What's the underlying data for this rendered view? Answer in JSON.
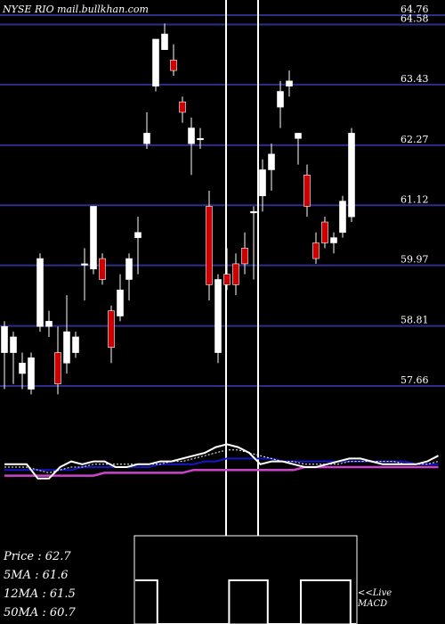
{
  "header": {
    "ticker_line": "NYSE RIO mail.bullkhan.com"
  },
  "chart_data": {
    "type": "candlestick",
    "ylim": [
      57.2,
      65.05
    ],
    "price_levels": [
      {
        "value": 64.76,
        "label": "64.76"
      },
      {
        "value": 64.58,
        "label": "64.58"
      },
      {
        "value": 63.43,
        "label": "63.43"
      },
      {
        "value": 62.27,
        "label": "62.27"
      },
      {
        "value": 61.12,
        "label": "61.12"
      },
      {
        "value": 59.97,
        "label": "59.97"
      },
      {
        "value": 58.81,
        "label": "58.81"
      },
      {
        "value": 57.66,
        "label": "57.66"
      }
    ],
    "candles": [
      {
        "o": 58.3,
        "h": 58.9,
        "l": 57.6,
        "c": 58.8,
        "color": "white"
      },
      {
        "o": 58.3,
        "h": 58.7,
        "l": 57.7,
        "c": 58.6,
        "color": "white"
      },
      {
        "o": 58.1,
        "h": 58.3,
        "l": 57.6,
        "c": 57.9,
        "color": "white"
      },
      {
        "o": 58.2,
        "h": 58.3,
        "l": 57.5,
        "c": 57.6,
        "color": "white"
      },
      {
        "o": 58.8,
        "h": 60.2,
        "l": 58.7,
        "c": 60.1,
        "color": "white"
      },
      {
        "o": 58.8,
        "h": 59.1,
        "l": 58.6,
        "c": 58.9,
        "color": "white"
      },
      {
        "o": 58.3,
        "h": 58.8,
        "l": 57.5,
        "c": 57.7,
        "color": "red"
      },
      {
        "o": 58.1,
        "h": 59.4,
        "l": 57.9,
        "c": 58.7,
        "color": "white"
      },
      {
        "o": 58.3,
        "h": 58.7,
        "l": 58.2,
        "c": 58.6,
        "color": "white"
      },
      {
        "o": 60.0,
        "h": 60.3,
        "l": 59.3,
        "c": 60.0,
        "color": "white"
      },
      {
        "o": 59.9,
        "h": 61.1,
        "l": 59.8,
        "c": 61.1,
        "color": "white"
      },
      {
        "o": 60.1,
        "h": 60.2,
        "l": 59.6,
        "c": 59.7,
        "color": "red"
      },
      {
        "o": 59.1,
        "h": 59.2,
        "l": 58.1,
        "c": 58.4,
        "color": "red"
      },
      {
        "o": 59.0,
        "h": 59.8,
        "l": 58.9,
        "c": 59.5,
        "color": "white"
      },
      {
        "o": 59.7,
        "h": 60.2,
        "l": 59.3,
        "c": 60.1,
        "color": "white"
      },
      {
        "o": 60.6,
        "h": 60.9,
        "l": 59.8,
        "c": 60.5,
        "color": "white"
      },
      {
        "o": 62.5,
        "h": 62.9,
        "l": 62.2,
        "c": 62.3,
        "color": "white"
      },
      {
        "o": 63.4,
        "h": 64.3,
        "l": 63.3,
        "c": 64.3,
        "color": "white"
      },
      {
        "o": 64.4,
        "h": 64.6,
        "l": 64.1,
        "c": 64.1,
        "color": "white"
      },
      {
        "o": 63.9,
        "h": 64.2,
        "l": 63.6,
        "c": 63.7,
        "color": "red"
      },
      {
        "o": 63.1,
        "h": 63.2,
        "l": 62.7,
        "c": 62.9,
        "color": "red"
      },
      {
        "o": 62.6,
        "h": 62.8,
        "l": 61.7,
        "c": 62.3,
        "color": "white"
      },
      {
        "o": 62.4,
        "h": 62.6,
        "l": 62.2,
        "c": 62.4,
        "color": "white"
      },
      {
        "o": 61.1,
        "h": 61.4,
        "l": 59.3,
        "c": 59.6,
        "color": "red"
      },
      {
        "o": 58.3,
        "h": 59.8,
        "l": 58.1,
        "c": 59.7,
        "color": "white"
      },
      {
        "o": 59.8,
        "h": 60.3,
        "l": 59.5,
        "c": 59.6,
        "color": "red"
      },
      {
        "o": 59.6,
        "h": 60.2,
        "l": 59.4,
        "c": 60.0,
        "color": "red"
      },
      {
        "o": 60.0,
        "h": 60.6,
        "l": 59.8,
        "c": 60.3,
        "color": "red"
      },
      {
        "o": 61.0,
        "h": 61.1,
        "l": 59.7,
        "c": 61.0,
        "color": "white"
      },
      {
        "o": 61.3,
        "h": 62.0,
        "l": 61.0,
        "c": 61.8,
        "color": "white"
      },
      {
        "o": 61.8,
        "h": 62.3,
        "l": 61.4,
        "c": 62.1,
        "color": "white"
      },
      {
        "o": 63.0,
        "h": 63.5,
        "l": 62.6,
        "c": 63.3,
        "color": "white"
      },
      {
        "o": 63.4,
        "h": 63.7,
        "l": 63.2,
        "c": 63.5,
        "color": "white"
      },
      {
        "o": 62.5,
        "h": 62.5,
        "l": 61.9,
        "c": 62.4,
        "color": "white"
      },
      {
        "o": 61.7,
        "h": 61.9,
        "l": 60.9,
        "c": 61.1,
        "color": "red"
      },
      {
        "o": 60.4,
        "h": 60.6,
        "l": 60.0,
        "c": 60.1,
        "color": "red"
      },
      {
        "o": 60.8,
        "h": 60.9,
        "l": 60.3,
        "c": 60.4,
        "color": "red"
      },
      {
        "o": 60.4,
        "h": 60.6,
        "l": 60.2,
        "c": 60.5,
        "color": "white"
      },
      {
        "o": 60.6,
        "h": 61.3,
        "l": 60.5,
        "c": 61.2,
        "color": "white"
      },
      {
        "o": 60.9,
        "h": 62.6,
        "l": 60.8,
        "c": 62.5,
        "color": "white"
      }
    ],
    "stats": [
      {
        "label": "Price",
        "value": "62.7"
      },
      {
        "label": "5MA",
        "value": "61.6"
      },
      {
        "label": "12MA",
        "value": "61.5"
      },
      {
        "label": "50MA",
        "value": "60.7"
      }
    ],
    "live_label": "<<Live",
    "macd_label": "MACD",
    "colors": {
      "background": "#000000",
      "gridline": "#2e2e8a",
      "up_candle": "#ffffff",
      "down_candle": "#cc0000",
      "price_line": "#ffffff",
      "ma_short": "#ffffff",
      "ma_mid": "#1515cc",
      "ma_long": "#cc44cc"
    },
    "indicator_lines": {
      "price": [
        56,
        56,
        56,
        51,
        51,
        55,
        57,
        56,
        57,
        57,
        55,
        55,
        56,
        56,
        57,
        57,
        58,
        59,
        60,
        62,
        63,
        62,
        60,
        56,
        57,
        57,
        56,
        55,
        55,
        56,
        57,
        58,
        58,
        57,
        56,
        56,
        56,
        56,
        57,
        59
      ],
      "ma_short": [
        55,
        55,
        55,
        54,
        53,
        54,
        55,
        55,
        56,
        56,
        56,
        56,
        56,
        56,
        56,
        57,
        57,
        58,
        59,
        60,
        61,
        61,
        60,
        59,
        58,
        57,
        57,
        56,
        56,
        56,
        56,
        57,
        57,
        57,
        57,
        57,
        56,
        56,
        56,
        57
      ],
      "ma_mid": [
        54,
        54,
        54,
        54,
        54,
        54,
        54,
        55,
        55,
        55,
        55,
        55,
        55,
        55,
        56,
        56,
        56,
        56,
        57,
        57,
        58,
        58,
        58,
        58,
        58,
        57,
        57,
        57,
        57,
        57,
        57,
        57,
        57,
        57,
        57,
        57,
        57,
        56,
        56,
        56
      ],
      "ma_long": [
        52,
        52,
        52,
        52,
        52,
        52,
        52,
        52,
        52,
        53,
        53,
        53,
        53,
        53,
        53,
        53,
        53,
        54,
        54,
        54,
        54,
        54,
        54,
        54,
        54,
        54,
        54,
        55,
        55,
        55,
        55,
        55,
        55,
        55,
        55,
        55,
        55,
        55,
        55,
        55
      ]
    },
    "macd_bars": [
      1,
      1,
      1,
      1,
      0,
      0,
      0,
      0,
      0,
      0,
      0,
      0,
      0,
      0,
      0,
      0,
      0,
      1,
      1,
      1,
      1,
      1,
      1,
      1,
      0,
      0,
      0,
      0,
      0,
      0,
      1,
      1,
      1,
      1,
      1,
      1,
      1,
      1,
      1,
      0
    ]
  }
}
